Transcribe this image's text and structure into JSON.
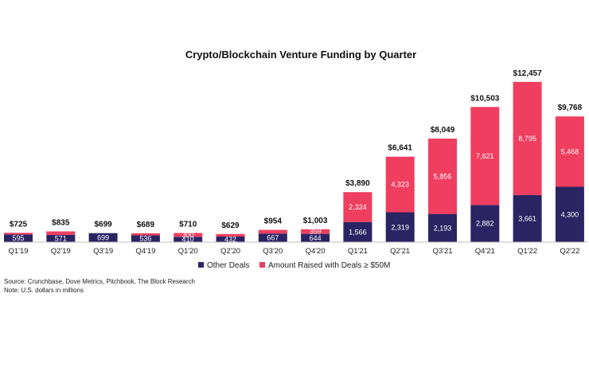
{
  "chart_data": {
    "type": "bar",
    "stacked": true,
    "title": "Crypto/Blockchain Venture Funding by Quarter",
    "categories": [
      "Q1'19",
      "Q2'19",
      "Q3'19",
      "Q4'19",
      "Q1'20",
      "Q2'20",
      "Q3'20",
      "Q4'20",
      "Q1'21",
      "Q2'21",
      "Q3'21",
      "Q4'21",
      "Q1'22",
      "Q2'22"
    ],
    "totals": [
      "$725",
      "$835",
      "$699",
      "$689",
      "$710",
      "$629",
      "$954",
      "$1,003",
      "$3,890",
      "$6,641",
      "$8,049",
      "$10,503",
      "$12,457",
      "$9,768"
    ],
    "series": [
      {
        "name": "Other Deals",
        "color": "#2b2463",
        "values": [
          595,
          571,
          699,
          536,
          410,
          432,
          667,
          644,
          1566,
          2319,
          2193,
          2882,
          3661,
          4300
        ],
        "labels": [
          "595",
          "571",
          "699",
          "536",
          "410",
          "432",
          "667",
          "644",
          "1,566",
          "2,319",
          "2,193",
          "2,882",
          "3,661",
          "4,300"
        ]
      },
      {
        "name": "Amount Raised with Deals ≥ $50M",
        "color": "#ef3e5f",
        "values": [
          130,
          264,
          0,
          153,
          300,
          197,
          287,
          359,
          2324,
          4323,
          5856,
          7621,
          8795,
          5468
        ],
        "labels": [
          "",
          "",
          "",
          "",
          "300",
          "",
          "",
          "359",
          "2,324",
          "4,323",
          "5,856",
          "7,621",
          "8,795",
          "5,468"
        ]
      }
    ],
    "ylim": [
      0,
      13000
    ],
    "legend_position": "bottom",
    "grid": false
  },
  "footer": {
    "source": "Source: Crunchbase, Dove Metrics, Pitchbook, The Block Research",
    "note": "Note: U.S. dollars in millions"
  }
}
